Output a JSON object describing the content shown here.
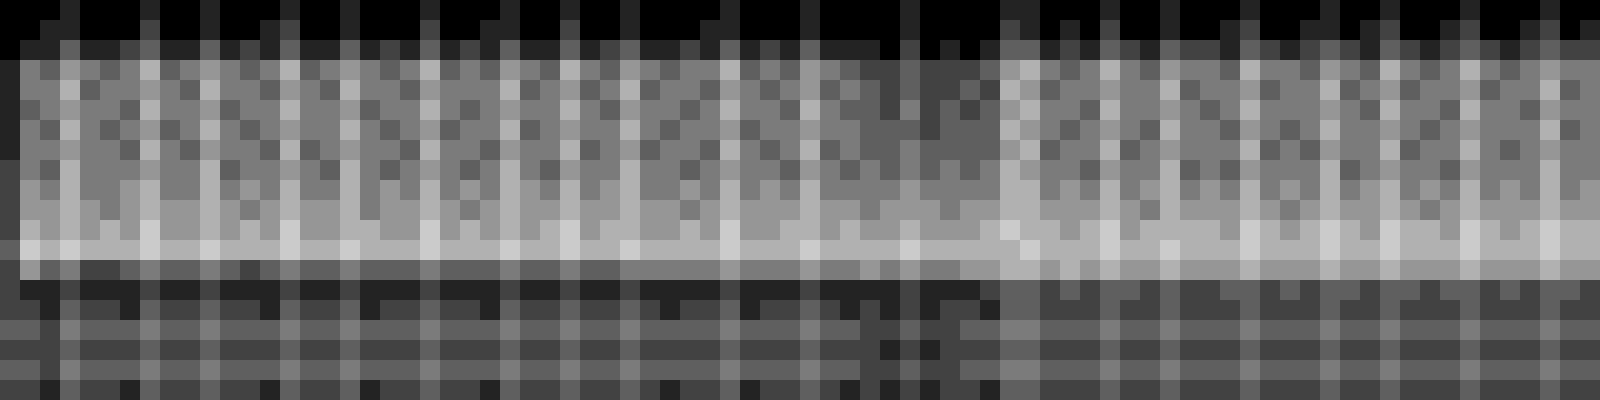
{
  "chart_data": {
    "type": "heatmap",
    "tick_labels": false,
    "color_range": [
      0,
      9
    ],
    "cells": [
      [
        0,
        0,
        0,
        1,
        0,
        0,
        0,
        1,
        0,
        0,
        1,
        0,
        0,
        0,
        1,
        0,
        0,
        1,
        0,
        0,
        0,
        1,
        0,
        0,
        0,
        1,
        0,
        0,
        1,
        0,
        0,
        1,
        0,
        0,
        0,
        0,
        1,
        0,
        0,
        0,
        1,
        0,
        0,
        0,
        0,
        1,
        0,
        0,
        0,
        0,
        1,
        1,
        0,
        0,
        0,
        1,
        0,
        0,
        1,
        0,
        0,
        0,
        1,
        0,
        0,
        0,
        1,
        0,
        0,
        1,
        0,
        0,
        0,
        1,
        0,
        0,
        0,
        1,
        0,
        0
      ],
      [
        0,
        0,
        1,
        1,
        0,
        0,
        0,
        2,
        0,
        0,
        1,
        0,
        0,
        1,
        2,
        0,
        0,
        1,
        0,
        0,
        0,
        2,
        0,
        0,
        1,
        1,
        0,
        0,
        2,
        0,
        0,
        1,
        0,
        0,
        0,
        1,
        1,
        0,
        0,
        0,
        1,
        0,
        0,
        0,
        0,
        1,
        0,
        0,
        0,
        0,
        2,
        1,
        0,
        1,
        0,
        2,
        0,
        0,
        1,
        0,
        0,
        1,
        2,
        0,
        0,
        1,
        1,
        0,
        1,
        2,
        0,
        0,
        1,
        2,
        0,
        0,
        1,
        2,
        0,
        1
      ],
      [
        0,
        1,
        1,
        3,
        1,
        1,
        2,
        3,
        1,
        1,
        3,
        1,
        2,
        1,
        3,
        1,
        1,
        3,
        1,
        2,
        1,
        3,
        1,
        2,
        1,
        3,
        1,
        1,
        3,
        1,
        2,
        3,
        1,
        1,
        2,
        1,
        3,
        1,
        2,
        1,
        3,
        1,
        1,
        1,
        0,
        2,
        0,
        1,
        0,
        1,
        3,
        3,
        1,
        2,
        1,
        3,
        2,
        1,
        3,
        2,
        2,
        1,
        3,
        2,
        1,
        2,
        3,
        2,
        1,
        3,
        2,
        1,
        2,
        3,
        2,
        1,
        2,
        3,
        2,
        2
      ],
      [
        1,
        4,
        3,
        5,
        4,
        3,
        4,
        6,
        3,
        4,
        5,
        4,
        3,
        4,
        6,
        3,
        4,
        5,
        4,
        3,
        4,
        6,
        3,
        4,
        3,
        5,
        4,
        3,
        6,
        4,
        3,
        5,
        4,
        3,
        4,
        4,
        6,
        3,
        4,
        3,
        5,
        4,
        3,
        2,
        2,
        3,
        2,
        2,
        2,
        3,
        5,
        6,
        4,
        3,
        4,
        6,
        4,
        3,
        5,
        4,
        4,
        3,
        6,
        4,
        4,
        3,
        5,
        4,
        3,
        6,
        4,
        3,
        4,
        6,
        4,
        3,
        4,
        5,
        4,
        4
      ],
      [
        1,
        4,
        4,
        6,
        3,
        4,
        4,
        5,
        4,
        3,
        6,
        4,
        4,
        3,
        5,
        4,
        3,
        6,
        4,
        4,
        3,
        5,
        4,
        4,
        4,
        6,
        3,
        4,
        5,
        3,
        4,
        6,
        3,
        4,
        4,
        3,
        5,
        4,
        3,
        4,
        5,
        3,
        4,
        3,
        2,
        3,
        2,
        2,
        3,
        2,
        6,
        5,
        3,
        4,
        4,
        5,
        4,
        4,
        6,
        3,
        4,
        4,
        5,
        3,
        4,
        4,
        6,
        3,
        4,
        5,
        3,
        4,
        4,
        5,
        3,
        4,
        4,
        6,
        3,
        4
      ],
      [
        1,
        3,
        4,
        5,
        4,
        4,
        3,
        6,
        4,
        4,
        5,
        3,
        4,
        4,
        6,
        4,
        4,
        5,
        3,
        4,
        4,
        6,
        4,
        3,
        4,
        5,
        4,
        4,
        6,
        4,
        3,
        5,
        4,
        4,
        3,
        4,
        6,
        4,
        4,
        3,
        6,
        4,
        3,
        3,
        2,
        4,
        2,
        3,
        2,
        3,
        5,
        6,
        4,
        4,
        3,
        6,
        4,
        4,
        5,
        4,
        3,
        4,
        6,
        4,
        4,
        4,
        5,
        4,
        3,
        6,
        4,
        4,
        3,
        6,
        4,
        4,
        3,
        5,
        4,
        4
      ],
      [
        1,
        4,
        3,
        6,
        4,
        3,
        4,
        5,
        3,
        4,
        6,
        4,
        3,
        4,
        5,
        4,
        4,
        6,
        4,
        3,
        4,
        5,
        3,
        4,
        4,
        6,
        3,
        4,
        5,
        4,
        4,
        6,
        4,
        3,
        4,
        4,
        5,
        3,
        4,
        4,
        5,
        4,
        4,
        3,
        3,
        3,
        2,
        3,
        3,
        3,
        6,
        5,
        4,
        3,
        4,
        5,
        4,
        3,
        6,
        4,
        4,
        3,
        5,
        4,
        3,
        4,
        6,
        4,
        4,
        5,
        4,
        3,
        4,
        5,
        4,
        4,
        4,
        6,
        3,
        4
      ],
      [
        1,
        4,
        4,
        5,
        4,
        4,
        3,
        6,
        4,
        3,
        5,
        4,
        4,
        3,
        6,
        3,
        4,
        5,
        4,
        4,
        3,
        6,
        4,
        4,
        3,
        5,
        4,
        4,
        6,
        3,
        4,
        5,
        3,
        4,
        4,
        3,
        6,
        4,
        3,
        4,
        6,
        3,
        4,
        3,
        3,
        4,
        3,
        3,
        3,
        3,
        5,
        6,
        3,
        4,
        4,
        6,
        3,
        4,
        5,
        4,
        4,
        4,
        6,
        3,
        4,
        3,
        5,
        4,
        4,
        6,
        3,
        4,
        4,
        6,
        4,
        3,
        4,
        5,
        4,
        4
      ],
      [
        2,
        4,
        3,
        6,
        4,
        4,
        4,
        5,
        4,
        4,
        6,
        3,
        4,
        4,
        5,
        4,
        3,
        6,
        4,
        3,
        4,
        5,
        4,
        3,
        4,
        6,
        4,
        3,
        5,
        4,
        4,
        6,
        4,
        4,
        3,
        4,
        5,
        4,
        4,
        3,
        5,
        4,
        3,
        4,
        3,
        4,
        3,
        4,
        3,
        4,
        6,
        5,
        4,
        4,
        3,
        5,
        4,
        4,
        6,
        3,
        4,
        3,
        5,
        4,
        4,
        4,
        6,
        3,
        4,
        5,
        4,
        4,
        3,
        5,
        4,
        4,
        4,
        6,
        4,
        4
      ],
      [
        2,
        5,
        4,
        6,
        4,
        4,
        5,
        6,
        4,
        4,
        6,
        4,
        5,
        4,
        6,
        4,
        4,
        6,
        4,
        5,
        4,
        6,
        4,
        5,
        4,
        6,
        5,
        4,
        6,
        4,
        5,
        6,
        4,
        4,
        5,
        4,
        6,
        4,
        5,
        4,
        6,
        4,
        4,
        4,
        4,
        5,
        4,
        4,
        4,
        4,
        6,
        6,
        4,
        5,
        4,
        6,
        4,
        5,
        6,
        4,
        5,
        4,
        6,
        4,
        5,
        4,
        6,
        4,
        5,
        6,
        4,
        5,
        4,
        6,
        4,
        5,
        4,
        6,
        4,
        5
      ],
      [
        2,
        5,
        5,
        6,
        5,
        4,
        5,
        6,
        5,
        5,
        6,
        5,
        4,
        5,
        6,
        5,
        5,
        6,
        4,
        5,
        5,
        6,
        5,
        4,
        5,
        6,
        5,
        5,
        6,
        5,
        5,
        6,
        5,
        5,
        4,
        5,
        6,
        5,
        5,
        5,
        6,
        5,
        5,
        4,
        5,
        5,
        5,
        4,
        5,
        5,
        6,
        6,
        5,
        5,
        5,
        6,
        5,
        4,
        6,
        5,
        5,
        5,
        6,
        5,
        4,
        5,
        6,
        5,
        5,
        6,
        5,
        4,
        5,
        6,
        5,
        5,
        5,
        6,
        5,
        5
      ],
      [
        2,
        6,
        5,
        6,
        5,
        6,
        5,
        7,
        5,
        5,
        6,
        5,
        6,
        5,
        7,
        5,
        5,
        6,
        6,
        5,
        5,
        7,
        5,
        6,
        5,
        6,
        5,
        6,
        7,
        5,
        6,
        6,
        5,
        5,
        6,
        5,
        7,
        5,
        5,
        6,
        6,
        5,
        6,
        5,
        5,
        6,
        5,
        5,
        5,
        6,
        7,
        6,
        6,
        5,
        6,
        7,
        5,
        6,
        6,
        6,
        6,
        5,
        7,
        6,
        5,
        6,
        7,
        6,
        5,
        7,
        6,
        6,
        5,
        7,
        6,
        5,
        6,
        7,
        6,
        6
      ],
      [
        3,
        7,
        6,
        7,
        6,
        6,
        6,
        7,
        6,
        6,
        7,
        6,
        6,
        6,
        7,
        6,
        6,
        7,
        6,
        6,
        6,
        7,
        6,
        6,
        6,
        7,
        6,
        6,
        7,
        6,
        6,
        7,
        6,
        6,
        6,
        6,
        7,
        6,
        6,
        6,
        7,
        6,
        6,
        6,
        6,
        7,
        6,
        6,
        6,
        6,
        6,
        7,
        6,
        6,
        6,
        7,
        6,
        6,
        7,
        6,
        6,
        6,
        7,
        6,
        6,
        6,
        7,
        6,
        6,
        7,
        6,
        6,
        6,
        7,
        6,
        6,
        6,
        7,
        6,
        6
      ],
      [
        2,
        5,
        3,
        4,
        2,
        2,
        3,
        4,
        3,
        3,
        4,
        3,
        2,
        3,
        4,
        3,
        3,
        4,
        3,
        3,
        3,
        4,
        3,
        3,
        3,
        4,
        3,
        3,
        4,
        3,
        3,
        4,
        4,
        4,
        4,
        4,
        5,
        4,
        4,
        4,
        5,
        4,
        4,
        5,
        4,
        5,
        4,
        4,
        5,
        5,
        6,
        6,
        5,
        6,
        5,
        6,
        5,
        5,
        6,
        5,
        5,
        5,
        6,
        5,
        5,
        5,
        6,
        5,
        5,
        6,
        5,
        5,
        5,
        6,
        5,
        5,
        5,
        6,
        5,
        5
      ],
      [
        2,
        1,
        1,
        2,
        1,
        1,
        1,
        2,
        1,
        1,
        2,
        1,
        1,
        1,
        2,
        1,
        1,
        2,
        1,
        1,
        1,
        2,
        1,
        1,
        1,
        2,
        1,
        1,
        2,
        1,
        1,
        2,
        1,
        1,
        1,
        1,
        2,
        1,
        1,
        1,
        2,
        1,
        1,
        1,
        1,
        2,
        1,
        1,
        1,
        2,
        3,
        3,
        2,
        3,
        2,
        3,
        3,
        2,
        3,
        2,
        2,
        3,
        3,
        2,
        3,
        2,
        3,
        3,
        2,
        3,
        3,
        2,
        3,
        3,
        2,
        3,
        2,
        3,
        3,
        2
      ],
      [
        2,
        2,
        1,
        3,
        2,
        2,
        1,
        3,
        2,
        2,
        3,
        2,
        2,
        1,
        3,
        2,
        2,
        3,
        1,
        2,
        2,
        3,
        2,
        2,
        1,
        3,
        2,
        2,
        3,
        2,
        2,
        3,
        2,
        1,
        2,
        2,
        3,
        1,
        2,
        2,
        3,
        2,
        1,
        2,
        1,
        2,
        1,
        2,
        2,
        1,
        3,
        3,
        2,
        2,
        2,
        3,
        2,
        2,
        3,
        2,
        2,
        2,
        3,
        2,
        2,
        2,
        3,
        2,
        2,
        3,
        2,
        2,
        2,
        3,
        2,
        2,
        2,
        3,
        2,
        2
      ],
      [
        3,
        3,
        2,
        4,
        3,
        3,
        3,
        4,
        3,
        3,
        4,
        3,
        3,
        3,
        4,
        3,
        3,
        4,
        3,
        3,
        3,
        4,
        3,
        3,
        3,
        4,
        3,
        3,
        4,
        3,
        3,
        4,
        3,
        3,
        3,
        3,
        4,
        3,
        3,
        3,
        4,
        3,
        3,
        2,
        2,
        3,
        2,
        2,
        3,
        3,
        4,
        4,
        3,
        3,
        3,
        4,
        3,
        3,
        4,
        3,
        3,
        3,
        4,
        3,
        3,
        3,
        4,
        3,
        3,
        4,
        3,
        3,
        3,
        4,
        3,
        3,
        3,
        4,
        3,
        3
      ],
      [
        2,
        2,
        2,
        3,
        2,
        2,
        2,
        3,
        2,
        2,
        3,
        2,
        2,
        2,
        3,
        2,
        2,
        3,
        2,
        2,
        2,
        3,
        2,
        2,
        2,
        3,
        2,
        2,
        3,
        2,
        2,
        3,
        2,
        2,
        2,
        2,
        3,
        2,
        2,
        2,
        3,
        2,
        2,
        2,
        1,
        2,
        1,
        2,
        2,
        2,
        3,
        3,
        2,
        2,
        2,
        3,
        2,
        2,
        3,
        2,
        2,
        2,
        3,
        2,
        2,
        2,
        3,
        2,
        2,
        3,
        2,
        2,
        2,
        3,
        2,
        2,
        2,
        3,
        2,
        2
      ],
      [
        3,
        3,
        2,
        4,
        3,
        3,
        3,
        4,
        3,
        3,
        4,
        3,
        3,
        3,
        4,
        3,
        3,
        4,
        3,
        3,
        3,
        4,
        3,
        3,
        3,
        4,
        3,
        3,
        4,
        3,
        3,
        4,
        3,
        3,
        3,
        3,
        4,
        3,
        3,
        3,
        4,
        3,
        3,
        2,
        2,
        3,
        2,
        2,
        3,
        3,
        4,
        4,
        3,
        3,
        3,
        4,
        3,
        3,
        4,
        3,
        3,
        3,
        4,
        3,
        3,
        3,
        4,
        3,
        3,
        4,
        3,
        3,
        3,
        4,
        3,
        3,
        3,
        4,
        3,
        3
      ],
      [
        2,
        2,
        1,
        3,
        2,
        2,
        1,
        3,
        2,
        2,
        3,
        2,
        2,
        1,
        3,
        2,
        2,
        3,
        1,
        2,
        2,
        3,
        2,
        2,
        1,
        3,
        2,
        2,
        3,
        2,
        2,
        3,
        2,
        1,
        2,
        2,
        3,
        1,
        2,
        2,
        3,
        2,
        1,
        2,
        1,
        2,
        1,
        2,
        2,
        1,
        3,
        3,
        2,
        2,
        2,
        3,
        2,
        2,
        3,
        2,
        2,
        2,
        3,
        2,
        2,
        2,
        3,
        2,
        2,
        3,
        2,
        2,
        2,
        3,
        2,
        2,
        2,
        3,
        2,
        2
      ]
    ]
  }
}
